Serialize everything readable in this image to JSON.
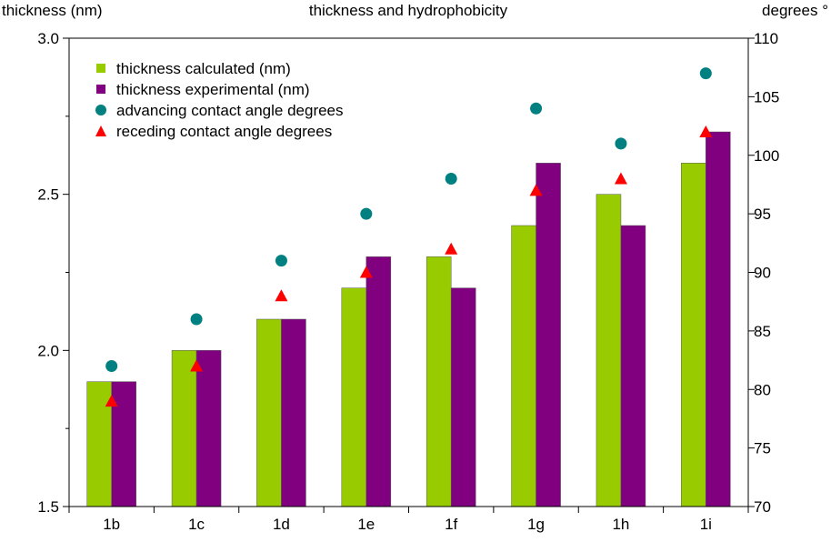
{
  "chart_data": {
    "type": "bar",
    "title": "thickness and hydrophobicity",
    "ylabel_left": "thickness (nm)",
    "ylabel_right": "degrees °",
    "categories": [
      "1b",
      "1c",
      "1d",
      "1e",
      "1f",
      "1g",
      "1h",
      "1i"
    ],
    "y_left": {
      "range": [
        1.5,
        3.0
      ],
      "labeled_ticks": [
        "1.5",
        "2.0",
        "2.5",
        "3.0"
      ],
      "label_values": [
        1.5,
        2.0,
        2.5,
        3.0
      ],
      "minor_values": [
        1.75,
        2.25,
        2.75
      ]
    },
    "y_right": {
      "range": [
        70,
        110
      ],
      "labeled_ticks": [
        "70",
        "75",
        "80",
        "85",
        "90",
        "95",
        "100",
        "105",
        "110"
      ],
      "label_values": [
        70,
        75,
        80,
        85,
        90,
        95,
        100,
        105,
        110
      ]
    },
    "grid": false,
    "legend_position": "top-left",
    "series": [
      {
        "name": "thickness calculated (nm)",
        "kind": "bar",
        "axis": "left",
        "color": "#99cc00",
        "values": [
          1.9,
          2.0,
          2.1,
          2.2,
          2.3,
          2.4,
          2.5,
          2.6
        ]
      },
      {
        "name": "thickness experimental (nm)",
        "kind": "bar",
        "axis": "left",
        "color": "#800080",
        "values": [
          1.9,
          2.0,
          2.1,
          2.3,
          2.2,
          2.6,
          2.4,
          2.7
        ]
      },
      {
        "name": "advancing contact angle degrees",
        "kind": "circle",
        "axis": "right",
        "color": "#008080",
        "values": [
          82,
          86,
          91,
          95,
          98,
          104,
          101,
          107
        ]
      },
      {
        "name": "receding contact angle degrees",
        "kind": "triangle",
        "axis": "right",
        "color": "#ff0000",
        "values": [
          79,
          82,
          88,
          90,
          92,
          97,
          98,
          102
        ]
      }
    ]
  }
}
